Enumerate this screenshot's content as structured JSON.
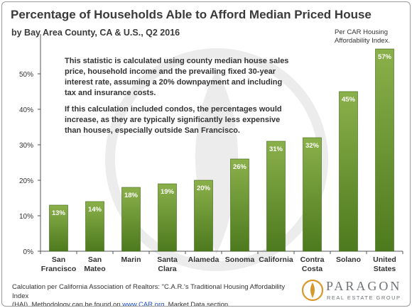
{
  "header": {
    "title": "Percentage of Households Able to Afford Median Priced House",
    "subtitle": "by Bay Area County, CA & U.S., Q2 2016",
    "index_note_line1": "Per CAR Housing",
    "index_note_line2": "Affordability Index."
  },
  "explanation": {
    "para1": "This statistic is calculated using county median house sales price, household income and the prevailing fixed 30-year   interest rate, assuming a 20% downpayment and including tax and insurance costs.",
    "para2": "If this calculation included condos, the percentages would increase, as they are typically significantly less expensive than houses, especially outside San Francisco."
  },
  "footnote": {
    "line1": "Calculation per California Association of Realtors: \"C.A.R.'s Traditional Housing Affordability Index",
    "line2_pre": "(HAI). Methodology can be found on ",
    "line2_link": "www.CAR.org",
    "line2_post": ", Market Data section."
  },
  "brand": {
    "name": "PARAGON",
    "tagline": "REAL ESTATE GROUP"
  },
  "colors": {
    "bar_top": "#8ab04a",
    "bar_bottom": "#4d7a1e",
    "label_text": "#ffffff",
    "axis": "#555555",
    "watermark": "#ececec",
    "brand_gold": "#d79a2a"
  },
  "chart_data": {
    "type": "bar",
    "categories": [
      [
        "San",
        "Francisco"
      ],
      [
        "San",
        "Mateo"
      ],
      [
        "Marin"
      ],
      [
        "Santa",
        "Clara"
      ],
      [
        "Alameda"
      ],
      [
        "Sonoma"
      ],
      [
        "California"
      ],
      [
        "Contra",
        "Costa"
      ],
      [
        "Solano"
      ],
      [
        "United",
        "States"
      ]
    ],
    "values": [
      13,
      14,
      18,
      19,
      20,
      26,
      31,
      32,
      45,
      57
    ],
    "value_labels": [
      "13%",
      "14%",
      "18%",
      "19%",
      "20%",
      "26%",
      "31%",
      "32%",
      "45%",
      "57%"
    ],
    "ylim": [
      0,
      60
    ],
    "yticks": [
      0,
      10,
      20,
      30,
      40,
      50
    ],
    "ytick_labels": [
      "0%",
      "10%",
      "20%",
      "30%",
      "40%",
      "50%"
    ],
    "grid": false,
    "legend": "none"
  }
}
